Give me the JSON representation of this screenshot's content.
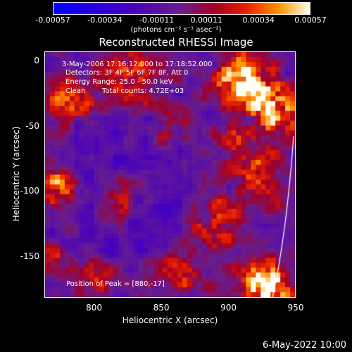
{
  "colorbar": {
    "ticks": [
      "-0.00057",
      "-0.00034",
      "-0.00011",
      "0.00011",
      "0.00034",
      "0.00057"
    ],
    "units_text": "(photons cm⁻² s⁻¹ asec⁻²)"
  },
  "chart_data": {
    "type": "heatmap",
    "title": "Reconstructed RHESSI Image",
    "xlabel": "Heliocentric X (arcsec)",
    "ylabel": "Heliocentric Y (arcsec)",
    "xlim": [
      763,
      950
    ],
    "ylim": [
      -182,
      7
    ],
    "x_ticks": [
      800,
      850,
      900,
      950
    ],
    "y_ticks": [
      0,
      -50,
      -100,
      -150
    ],
    "colorbar_range": [
      -0.00057,
      0.00057
    ],
    "peak": [
      880,
      -17
    ],
    "annotations": {
      "time_range": "3-May-2006 17:16:12.000 to 17:18:52.000",
      "detectors": "Detectors: 3F 4F 5F 6F 7F 8F, Att 0",
      "energy": "Energy Range: 25.0 - 50.0 keV",
      "clean": "Clean",
      "total_counts": "Total counts: 4.72E+03",
      "peak_position": "Position of Peak = [880,-17]"
    }
  },
  "footer": {
    "date": "6-May-2022 10:00"
  }
}
